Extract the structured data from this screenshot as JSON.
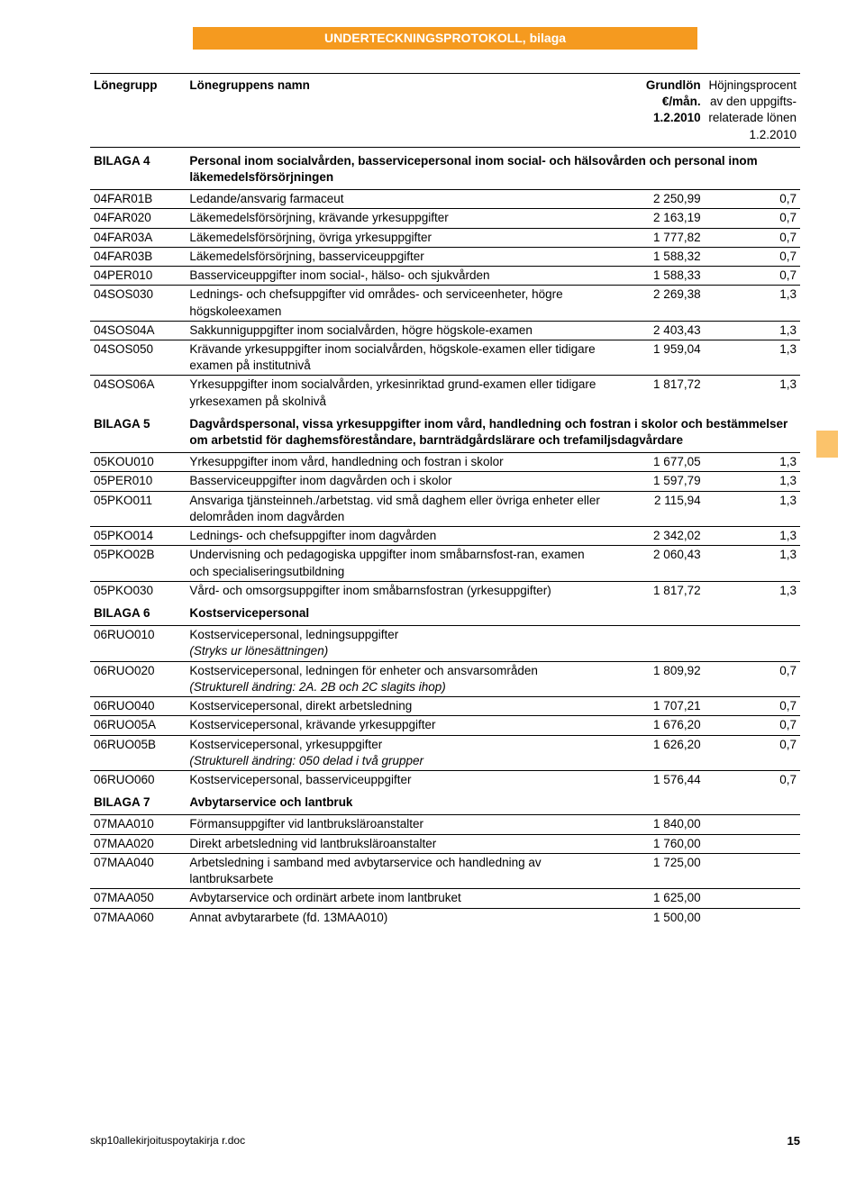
{
  "banner": "UNDERTECKNINGSPROTOKOLL, bilaga",
  "header": {
    "c1": "Lönegrupp",
    "c2": "Lönegruppens namn",
    "c3a": "Grundlön",
    "c3b": "€/mån.",
    "c3c": "1.2.2010",
    "c4a": "Höjningsprocent",
    "c4b": "av den uppgifts-",
    "c4c": "relaterade lönen",
    "c4d": "1.2.2010"
  },
  "sections": [
    {
      "code": "BILAGA 4",
      "title": "Personal inom socialvården, basservicepersonal inom social- och hälsovården och personal inom läkemedelsförsörjningen",
      "rows": [
        {
          "code": "04FAR01B",
          "desc": "Ledande/ansvarig farmaceut",
          "v1": "2 250,99",
          "v2": "0,7"
        },
        {
          "code": "04FAR020",
          "desc": "Läkemedelsförsörjning, krävande yrkesuppgifter",
          "v1": "2 163,19",
          "v2": "0,7"
        },
        {
          "code": "04FAR03A",
          "desc": "Läkemedelsförsörjning, övriga yrkesuppgifter",
          "v1": "1 777,82",
          "v2": "0,7"
        },
        {
          "code": "04FAR03B",
          "desc": "Läkemedelsförsörjning, basserviceuppgifter",
          "v1": "1 588,32",
          "v2": "0,7"
        },
        {
          "code": "04PER010",
          "desc": "Basserviceuppgifter inom social-, hälso- och sjukvården",
          "v1": "1 588,33",
          "v2": "0,7"
        },
        {
          "code": "04SOS030",
          "desc": "Lednings- och chefsuppgifter vid områdes- och serviceenheter, högre högskoleexamen",
          "v1": "2 269,38",
          "v2": "1,3"
        },
        {
          "code": "04SOS04A",
          "desc": "Sakkunniguppgifter inom socialvården, högre högskole-examen",
          "v1": "2 403,43",
          "v2": "1,3"
        },
        {
          "code": "04SOS050",
          "desc": "Krävande yrkesuppgifter inom socialvården, högskole-examen eller tidigare examen på institutnivå",
          "v1": "1 959,04",
          "v2": "1,3"
        },
        {
          "code": "04SOS06A",
          "desc": "Yrkesuppgifter inom socialvården, yrkesinriktad grund-examen eller tidigare yrkesexamen på skolnivå",
          "v1": "1 817,72",
          "v2": "1,3"
        }
      ]
    },
    {
      "code": "BILAGA 5",
      "title": "Dagvårdspersonal, vissa yrkesuppgifter inom vård, handledning och fostran i skolor och bestämmelser om arbetstid för daghemsföreståndare, barnträdgårdslärare och trefamiljsdagvårdare",
      "rows": [
        {
          "code": "05KOU010",
          "desc": "Yrkesuppgifter inom vård, handledning och fostran i skolor",
          "v1": "1 677,05",
          "v2": "1,3"
        },
        {
          "code": "05PER010",
          "desc": "Basserviceuppgifter inom dagvården och i skolor",
          "v1": "1 597,79",
          "v2": "1,3"
        },
        {
          "code": "05PKO011",
          "desc": "Ansvariga tjänsteinneh./arbetstag. vid små daghem eller övriga enheter eller delområden inom dagvården",
          "v1": "2 115,94",
          "v2": "1,3"
        },
        {
          "code": "05PKO014",
          "desc": "Lednings- och chefsuppgifter inom dagvården",
          "v1": "2 342,02",
          "v2": "1,3"
        },
        {
          "code": "05PKO02B",
          "desc": "Undervisning och pedagogiska uppgifter inom småbarnsfost-ran, examen och specialiseringsutbildning",
          "v1": "2 060,43",
          "v2": "1,3"
        },
        {
          "code": "05PKO030",
          "desc": "Vård- och omsorgsuppgifter inom småbarnsfostran (yrkesuppgifter)",
          "v1": "1 817,72",
          "v2": "1,3"
        }
      ]
    },
    {
      "code": "BILAGA 6",
      "title": "Kostservicepersonal",
      "inline": true,
      "rows": [
        {
          "code": "06RUO010",
          "desc": "Kostservicepersonal, ledningsuppgifter",
          "note": "(Stryks ur lönesättningen)",
          "v1": "",
          "v2": ""
        },
        {
          "code": "06RUO020",
          "desc": "Kostservicepersonal, ledningen för enheter och ansvarsområden",
          "note": "(Strukturell ändring: 2A. 2B och 2C slagits ihop)",
          "v1": "1 809,92",
          "v2": "0,7"
        },
        {
          "code": "06RUO040",
          "desc": "Kostservicepersonal, direkt arbetsledning",
          "v1": "1 707,21",
          "v2": "0,7"
        },
        {
          "code": "06RUO05A",
          "desc": "Kostservicepersonal, krävande yrkesuppgifter",
          "v1": "1 676,20",
          "v2": "0,7"
        },
        {
          "code": "06RUO05B",
          "desc": "Kostservicepersonal, yrkesuppgifter",
          "note": "(Strukturell ändring: 050 delad i två grupper",
          "v1": "1 626,20",
          "v2": "0,7"
        },
        {
          "code": "06RUO060",
          "desc": "Kostservicepersonal, basserviceuppgifter",
          "v1": "1 576,44",
          "v2": "0,7"
        }
      ]
    },
    {
      "code": "BILAGA 7",
      "title": "Avbytarservice och lantbruk",
      "rows": [
        {
          "code": "07MAA010",
          "desc": "Förmansuppgifter vid lantbruksläroanstalter",
          "v1": "1 840,00",
          "v2": ""
        },
        {
          "code": "07MAA020",
          "desc": "Direkt arbetsledning vid lantbruksläroanstalter",
          "v1": "1 760,00",
          "v2": ""
        },
        {
          "code": "07MAA040",
          "desc": "Arbetsledning i samband med avbytarservice och handledning av lantbruksarbete",
          "v1": "1 725,00",
          "v2": ""
        },
        {
          "code": "07MAA050",
          "desc": "Avbytarservice och ordinärt arbete inom lantbruket",
          "v1": "1 625,00",
          "v2": ""
        },
        {
          "code": "07MAA060",
          "desc": "Annat avbytararbete (fd. 13MAA010)",
          "v1": "1 500,00",
          "v2": ""
        }
      ]
    }
  ],
  "footer": {
    "filename": "skp10allekirjoituspoytakirja r.doc",
    "page": "15"
  }
}
